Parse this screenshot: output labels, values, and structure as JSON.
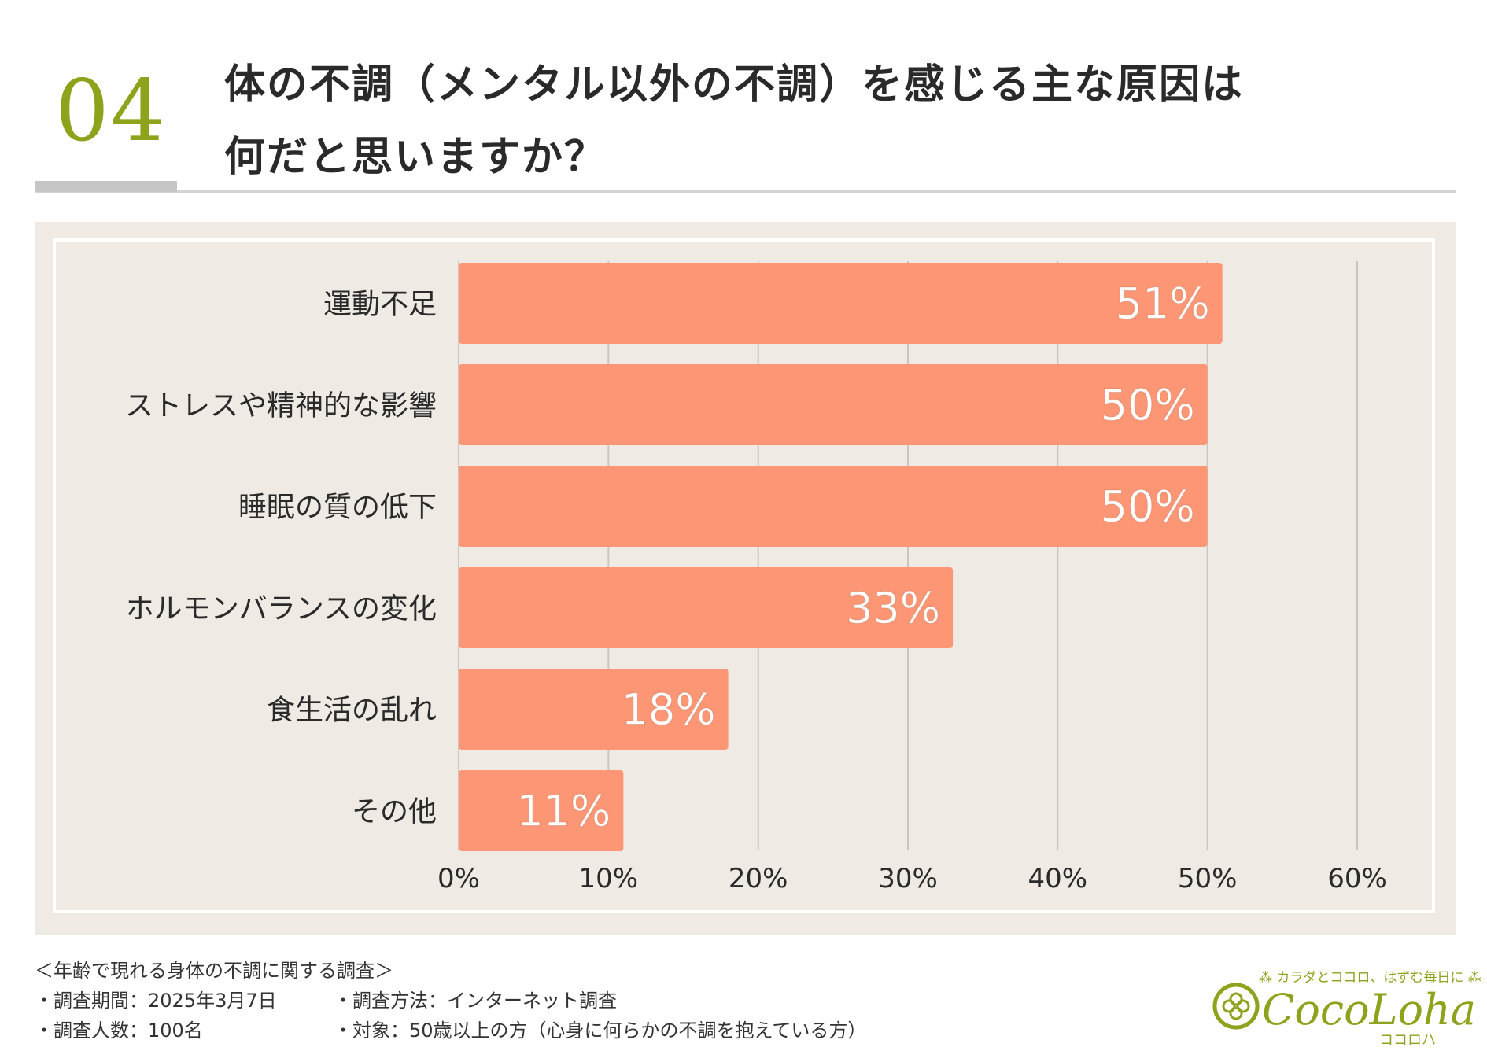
{
  "header": {
    "number": "04",
    "title_line1": "体の不調（メンタル以外の不調）を感じる主な原因は",
    "title_line2": "何だと思いますか？"
  },
  "chart_data": {
    "type": "bar",
    "orientation": "horizontal",
    "categories": [
      "運動不足",
      "ストレスや精神的な影響",
      "睡眠の質の低下",
      "ホルモンバランスの変化",
      "食生活の乱れ",
      "その他"
    ],
    "values": [
      51,
      50,
      50,
      33,
      18,
      11
    ],
    "value_labels": [
      "51%",
      "50%",
      "50%",
      "33%",
      "18%",
      "11%"
    ],
    "xlim": [
      0,
      60
    ],
    "xticks": [
      0,
      10,
      20,
      30,
      40,
      50,
      60
    ],
    "xtick_labels": [
      "0%",
      "10%",
      "20%",
      "30%",
      "40%",
      "50%",
      "60%"
    ],
    "grid": "vertical",
    "bar_color": "#fc9674",
    "background_color": "#efebe4",
    "label_color": "#ffffff"
  },
  "footer": {
    "survey_title": "＜年齢で現れる身体の不調に関する調査＞",
    "period": "・調査期間：2025年3月7日",
    "method": "・調査方法：インターネット調査",
    "count": "・調査人数：100名",
    "target": "・対象：50歳以上の方（心身に何らかの不調を抱えている方）"
  },
  "logo": {
    "tagline": "カラダとココロ、はずむ毎日に",
    "name": "CocoLoha",
    "kana": "ココロハ",
    "color": "#8ea21c"
  }
}
